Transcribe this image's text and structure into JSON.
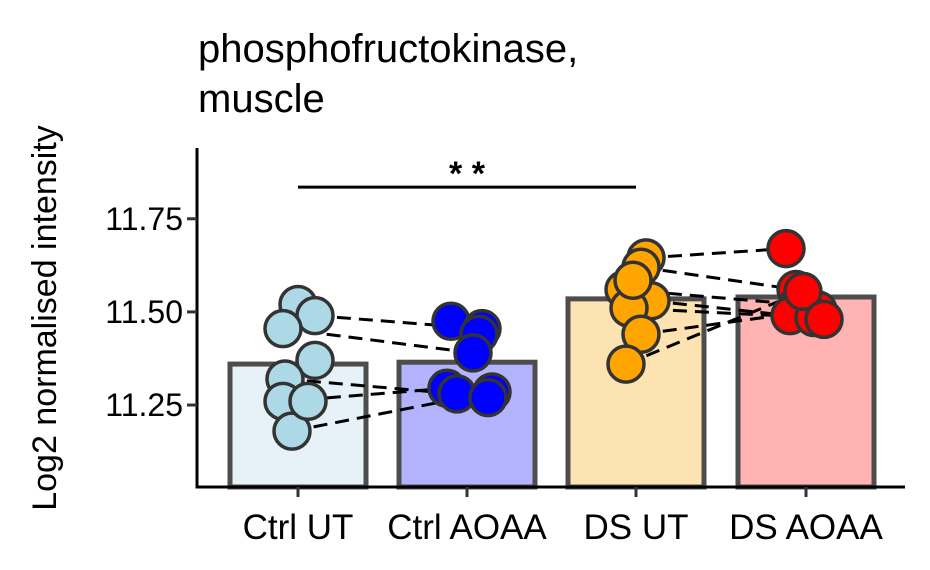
{
  "chart_data": {
    "type": "bar",
    "title_lines": [
      "phosphofructokinase,",
      "muscle"
    ],
    "xlabel": "",
    "ylabel": "Log2 normalised intensity",
    "ylim": [
      11.03,
      11.94
    ],
    "yticks": [
      11.25,
      11.5,
      11.75
    ],
    "ytick_labels": [
      "11.25",
      "11.50",
      "11.75"
    ],
    "categories": [
      "Ctrl UT",
      "Ctrl AOAA",
      "DS UT",
      "DS AOAA"
    ],
    "values": [
      11.36,
      11.365,
      11.535,
      11.54
    ],
    "bar_fill_colors": [
      "#e6f2f8",
      "#b3b3ff",
      "#fde2b2",
      "#ffb3b3"
    ],
    "point_colors": [
      "#add8e6",
      "#0000ff",
      "#ffa500",
      "#ff0000"
    ],
    "bar_outline_color": "#4d4d4d",
    "points": [
      [
        11.52,
        11.49,
        11.455,
        11.37,
        11.32,
        11.26,
        11.18,
        11.26
      ],
      [
        11.475,
        11.455,
        11.44,
        11.39,
        11.295,
        11.28,
        11.285,
        11.27
      ],
      [
        11.645,
        11.62,
        11.56,
        11.53,
        11.51,
        11.44,
        11.36,
        11.585
      ],
      [
        11.67,
        11.56,
        11.52,
        11.505,
        11.49,
        11.485,
        11.555,
        11.48
      ]
    ],
    "paired_lines": [
      {
        "from": 0,
        "to": 1,
        "pairs": [
          [
            1,
            1
          ],
          [
            2,
            3
          ],
          [
            4,
            5
          ],
          [
            5,
            4
          ],
          [
            6,
            6
          ]
        ]
      },
      {
        "from": 2,
        "to": 3,
        "pairs": [
          [
            0,
            0
          ],
          [
            1,
            1
          ],
          [
            2,
            2
          ],
          [
            3,
            4
          ],
          [
            4,
            5
          ],
          [
            5,
            3
          ],
          [
            6,
            6
          ]
        ]
      }
    ],
    "significance": [
      {
        "from": "Ctrl UT",
        "to": "DS UT",
        "y": 11.835,
        "label": "* *"
      }
    ]
  }
}
